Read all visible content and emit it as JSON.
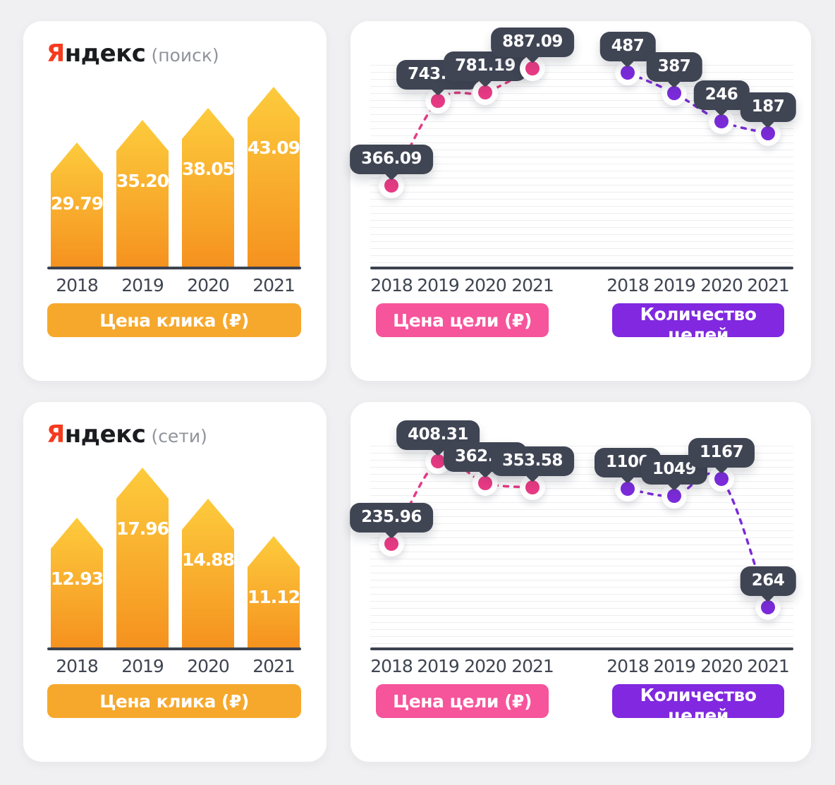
{
  "page": {
    "background": "#F0F0F2"
  },
  "colors": {
    "bar_gradient_top": "#FDCB3C",
    "bar_gradient_bottom": "#F5921F",
    "legend_yellow": "#F6A82C",
    "legend_pink": "#F6549B",
    "legend_purple": "#8128E0",
    "pink_series": "#E73A84",
    "purple_series": "#7B2BD9",
    "tooltip_bg": "#404554",
    "axis": "#3D4250",
    "brand_red": "#F63A1E"
  },
  "cards": [
    {
      "brand_initial": "Я",
      "brand_rest": "ндекс",
      "scope": "(поиск)",
      "legend": "Цена клика (₽)"
    },
    {
      "legends": [
        "Цена цели (₽)",
        "Количество целей"
      ]
    },
    {
      "brand_initial": "Я",
      "brand_rest": "ндекс",
      "scope": "(сети)",
      "legend": "Цена клика (₽)"
    },
    {
      "legends": [
        "Цена цели (₽)",
        "Количество целей"
      ]
    }
  ],
  "chart_data": [
    {
      "type": "bar",
      "title": "Яндекс (поиск) — Цена клика (₽)",
      "categories": [
        "2018",
        "2019",
        "2020",
        "2021"
      ],
      "values": [
        29.79,
        35.2,
        38.05,
        43.09
      ],
      "labels": [
        "29.79",
        "35.20",
        "38.05",
        "43.09"
      ],
      "xlabel": "",
      "ylabel": "Цена клика (₽)",
      "grid": false,
      "legend_position": "bottom"
    },
    {
      "type": "line",
      "title": "Яндекс (поиск) — цели",
      "categories": [
        "2018",
        "2019",
        "2020",
        "2021"
      ],
      "series": [
        {
          "name": "Цена цели (₽)",
          "color": "#E73A84",
          "values": [
            366.09,
            743.63,
            781.19,
            887.09
          ],
          "labels": [
            "366.09",
            "743.63",
            "781.19",
            "887.09"
          ]
        },
        {
          "name": "Количество целей",
          "color": "#7B2BD9",
          "values": [
            487,
            387,
            246,
            187
          ],
          "labels": [
            "487",
            "387",
            "246",
            "187"
          ]
        }
      ],
      "grid": true,
      "legend_position": "bottom",
      "line_style": "dashed"
    },
    {
      "type": "bar",
      "title": "Яндекс (сети) — Цена клика (₽)",
      "categories": [
        "2018",
        "2019",
        "2020",
        "2021"
      ],
      "values": [
        12.93,
        17.96,
        14.88,
        11.12
      ],
      "labels": [
        "12.93",
        "17.96",
        "14.88",
        "11.12"
      ],
      "xlabel": "",
      "ylabel": "Цена клика (₽)",
      "grid": false,
      "legend_position": "bottom"
    },
    {
      "type": "line",
      "title": "Яндекс (сети) — цели",
      "categories": [
        "2018",
        "2019",
        "2020",
        "2021"
      ],
      "series": [
        {
          "name": "Цена цели (₽)",
          "color": "#E73A84",
          "values": [
            235.96,
            408.31,
            362.32,
            353.58
          ],
          "labels": [
            "235.96",
            "408.31",
            "362.32",
            "353.58"
          ]
        },
        {
          "name": "Количество целей",
          "color": "#7B2BD9",
          "values": [
            1100,
            1049,
            1167,
            264
          ],
          "labels": [
            "1100",
            "1049",
            "1167",
            "264"
          ]
        }
      ],
      "grid": true,
      "legend_position": "bottom",
      "line_style": "dashed"
    }
  ]
}
